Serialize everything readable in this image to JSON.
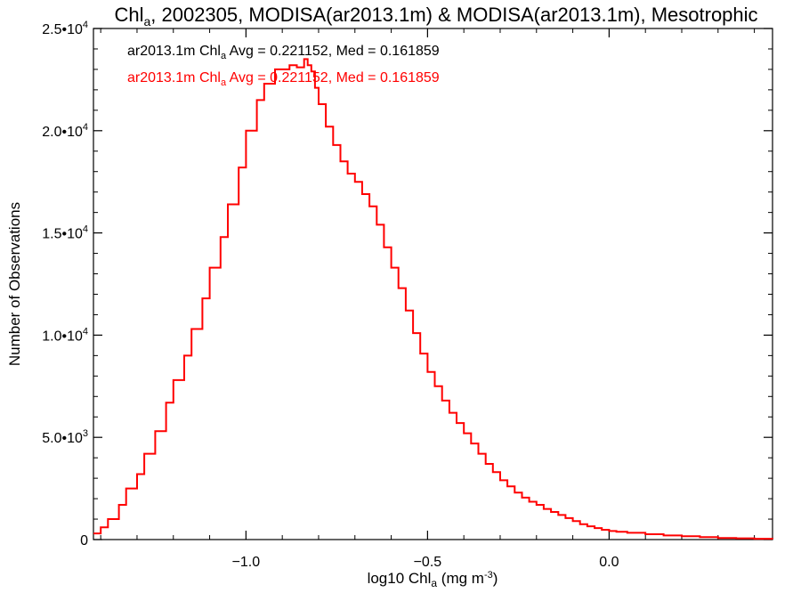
{
  "chart_data": {
    "type": "line",
    "title": {
      "pre": "Chl",
      "sub": "a",
      "post": ", 2002305, MODISA(ar2013.1m) & MODISA(ar2013.1m), Mesotrophic"
    },
    "xlabel": {
      "pre": "log10 Chl",
      "sub": "a",
      "post": " (mg m",
      "sup": "-3",
      "end": ")"
    },
    "ylabel": "Number of Observations",
    "xlim": [
      -1.42,
      0.45
    ],
    "ylim": [
      0,
      25000
    ],
    "x_ticks": [
      {
        "value": -1.0,
        "label": "−1.0"
      },
      {
        "value": -0.5,
        "label": "−0.5"
      },
      {
        "value": 0.0,
        "label": "0.0"
      }
    ],
    "y_ticks": [
      {
        "value": 0,
        "mant": "0",
        "exp": ""
      },
      {
        "value": 5000,
        "mant": "5.0•10",
        "exp": "3"
      },
      {
        "value": 10000,
        "mant": "1.0•10",
        "exp": "4"
      },
      {
        "value": 15000,
        "mant": "1.5•10",
        "exp": "4"
      },
      {
        "value": 20000,
        "mant": "2.0•10",
        "exp": "4"
      },
      {
        "value": 25000,
        "mant": "2.5•10",
        "exp": "4"
      }
    ],
    "annotations": [
      {
        "pre": "ar2013.1m Chl",
        "sub": "a",
        "post": " Avg = 0.221152, Med = 0.161859",
        "color": "#000000"
      },
      {
        "pre": "ar2013.1m Chl",
        "sub": "a",
        "post": " Avg = 0.221152, Med = 0.161859",
        "color": "#ff0000"
      }
    ],
    "series": [
      {
        "color": "#ff0000",
        "style": "step",
        "x": [
          -1.42,
          -1.4,
          -1.38,
          -1.35,
          -1.33,
          -1.3,
          -1.28,
          -1.25,
          -1.22,
          -1.2,
          -1.17,
          -1.15,
          -1.12,
          -1.1,
          -1.07,
          -1.05,
          -1.02,
          -1.0,
          -0.97,
          -0.95,
          -0.92,
          -0.9,
          -0.88,
          -0.86,
          -0.84,
          -0.83,
          -0.82,
          -0.81,
          -0.8,
          -0.78,
          -0.76,
          -0.74,
          -0.72,
          -0.7,
          -0.68,
          -0.66,
          -0.64,
          -0.62,
          -0.6,
          -0.58,
          -0.56,
          -0.54,
          -0.52,
          -0.5,
          -0.48,
          -0.46,
          -0.44,
          -0.42,
          -0.4,
          -0.38,
          -0.36,
          -0.34,
          -0.32,
          -0.3,
          -0.28,
          -0.26,
          -0.24,
          -0.22,
          -0.2,
          -0.18,
          -0.16,
          -0.14,
          -0.12,
          -0.1,
          -0.08,
          -0.06,
          -0.04,
          -0.02,
          0.0,
          0.02,
          0.05,
          0.1,
          0.15,
          0.2,
          0.25,
          0.3,
          0.35,
          0.4,
          0.45
        ],
        "y": [
          300,
          600,
          1000,
          1700,
          2500,
          3200,
          4200,
          5300,
          6700,
          7800,
          9000,
          10300,
          11800,
          13300,
          14800,
          16400,
          18200,
          20000,
          21500,
          22300,
          23000,
          23000,
          23200,
          23100,
          23500,
          23200,
          22900,
          22100,
          21300,
          20200,
          19300,
          18500,
          17900,
          17500,
          16900,
          16300,
          15400,
          14300,
          13300,
          12300,
          11200,
          10100,
          9100,
          8200,
          7500,
          6800,
          6200,
          5700,
          5200,
          4700,
          4200,
          3700,
          3300,
          2900,
          2600,
          2300,
          2050,
          1850,
          1700,
          1500,
          1350,
          1200,
          1050,
          900,
          750,
          650,
          560,
          480,
          420,
          380,
          330,
          260,
          200,
          160,
          120,
          80,
          60,
          40,
          20
        ]
      }
    ]
  }
}
